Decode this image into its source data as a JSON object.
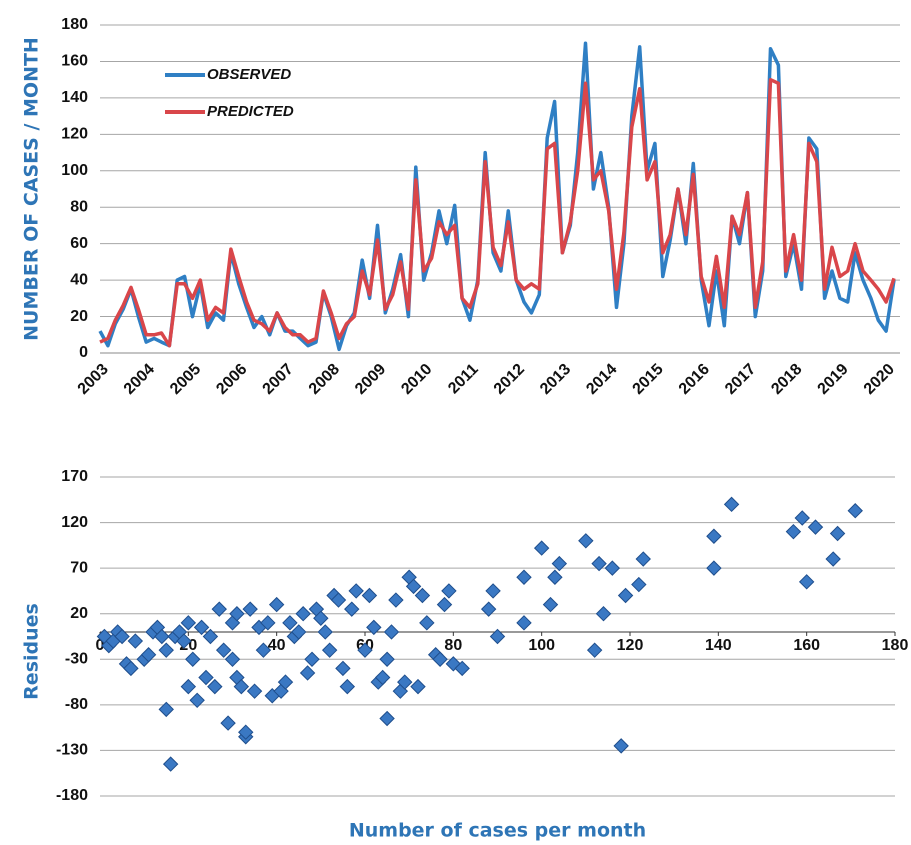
{
  "chart_data": [
    {
      "type": "line",
      "y_label": "NUMBER OF CASES / MONTH",
      "x": [
        2003,
        2003.17,
        2003.33,
        2003.5,
        2003.67,
        2003.83,
        2004,
        2004.17,
        2004.33,
        2004.5,
        2004.67,
        2004.83,
        2005,
        2005.17,
        2005.33,
        2005.5,
        2005.67,
        2005.83,
        2006,
        2006.17,
        2006.33,
        2006.5,
        2006.67,
        2006.83,
        2007,
        2007.17,
        2007.33,
        2007.5,
        2007.67,
        2007.83,
        2008,
        2008.17,
        2008.33,
        2008.5,
        2008.67,
        2008.83,
        2009,
        2009.17,
        2009.33,
        2009.5,
        2009.67,
        2009.83,
        2010,
        2010.17,
        2010.33,
        2010.5,
        2010.67,
        2010.83,
        2011,
        2011.17,
        2011.33,
        2011.5,
        2011.67,
        2011.83,
        2012,
        2012.17,
        2012.33,
        2012.5,
        2012.67,
        2012.83,
        2013,
        2013.17,
        2013.33,
        2013.5,
        2013.67,
        2013.83,
        2014,
        2014.17,
        2014.33,
        2014.5,
        2014.67,
        2014.83,
        2015,
        2015.17,
        2015.33,
        2015.5,
        2015.67,
        2015.83,
        2016,
        2016.17,
        2016.33,
        2016.5,
        2016.67,
        2016.83,
        2017,
        2017.17,
        2017.33,
        2017.5,
        2017.67,
        2017.83,
        2018,
        2018.17,
        2018.33,
        2018.5,
        2018.67,
        2018.83,
        2019,
        2019.17,
        2019.33,
        2019.5,
        2019.67,
        2019.83,
        2020,
        2020.17
      ],
      "series": [
        {
          "name": "OBSERVED",
          "color": "#2f7fc4",
          "values": [
            12,
            4,
            16,
            24,
            35,
            20,
            6,
            8,
            6,
            4,
            40,
            42,
            20,
            38,
            14,
            22,
            18,
            55,
            38,
            25,
            14,
            20,
            10,
            22,
            12,
            12,
            8,
            4,
            6,
            33,
            20,
            2,
            15,
            22,
            51,
            30,
            70,
            22,
            35,
            54,
            20,
            102,
            40,
            55,
            78,
            60,
            81,
            30,
            18,
            40,
            110,
            55,
            45,
            78,
            40,
            28,
            22,
            32,
            118,
            138,
            55,
            70,
            110,
            170,
            90,
            110,
            80,
            25,
            60,
            130,
            168,
            100,
            115,
            42,
            62,
            90,
            60,
            104,
            40,
            15,
            45,
            15,
            75,
            60,
            88,
            20,
            45,
            167,
            158,
            42,
            60,
            35,
            118,
            112,
            30,
            45,
            30,
            28,
            55,
            40,
            30,
            18,
            12,
            40
          ]
        },
        {
          "name": "PREDICTED",
          "color": "#d9464a",
          "values": [
            6,
            8,
            18,
            26,
            36,
            24,
            10,
            10,
            11,
            4,
            38,
            38,
            30,
            40,
            18,
            25,
            22,
            57,
            42,
            28,
            18,
            16,
            12,
            22,
            14,
            10,
            10,
            6,
            8,
            34,
            22,
            8,
            16,
            20,
            45,
            32,
            62,
            24,
            32,
            50,
            24,
            95,
            45,
            52,
            72,
            65,
            70,
            30,
            25,
            38,
            105,
            58,
            48,
            72,
            40,
            35,
            38,
            35,
            112,
            115,
            55,
            72,
            100,
            148,
            95,
            100,
            78,
            35,
            66,
            124,
            145,
            95,
            105,
            55,
            65,
            90,
            65,
            98,
            42,
            28,
            53,
            25,
            75,
            65,
            88,
            25,
            50,
            150,
            148,
            45,
            65,
            40,
            115,
            105,
            35,
            58,
            42,
            45,
            60,
            45,
            40,
            35,
            28,
            41
          ]
        }
      ],
      "xlim": [
        2003,
        2020.3
      ],
      "xticks": [
        2003,
        2004,
        2005,
        2006,
        2007,
        2008,
        2009,
        2010,
        2011,
        2012,
        2013,
        2014,
        2015,
        2016,
        2017,
        2018,
        2019,
        2020
      ],
      "ylim": [
        0,
        180
      ],
      "yticks": [
        0,
        20,
        40,
        60,
        80,
        100,
        120,
        140,
        160,
        180
      ],
      "grid": true,
      "legend": "upper left"
    },
    {
      "type": "scatter",
      "x_label": "Number of cases per month",
      "y_label": "Residues",
      "color": "#3a78c3",
      "x": [
        1,
        2,
        3,
        4,
        5,
        6,
        7,
        8,
        10,
        11,
        12,
        13,
        14,
        15,
        15,
        16,
        17,
        18,
        19,
        20,
        20,
        21,
        22,
        23,
        24,
        25,
        26,
        27,
        28,
        29,
        30,
        30,
        31,
        31,
        32,
        33,
        33,
        34,
        35,
        36,
        37,
        38,
        39,
        40,
        41,
        42,
        43,
        44,
        45,
        46,
        47,
        48,
        49,
        50,
        51,
        52,
        53,
        54,
        55,
        56,
        57,
        58,
        60,
        61,
        62,
        63,
        64,
        65,
        65,
        66,
        67,
        68,
        69,
        70,
        71,
        72,
        73,
        74,
        76,
        77,
        78,
        79,
        80,
        82,
        88,
        89,
        90,
        96,
        96,
        100,
        102,
        103,
        104,
        110,
        112,
        113,
        114,
        116,
        118,
        119,
        122,
        123,
        139,
        139,
        143,
        157,
        159,
        160,
        162,
        166,
        167,
        171
      ],
      "values": [
        -5,
        -15,
        -10,
        0,
        -5,
        -35,
        -40,
        -10,
        -30,
        -25,
        0,
        5,
        -5,
        -20,
        -85,
        -145,
        -5,
        0,
        -10,
        10,
        -60,
        -30,
        -75,
        5,
        -50,
        -5,
        -60,
        25,
        -20,
        -100,
        10,
        -30,
        20,
        -50,
        -60,
        -115,
        -110,
        25,
        -65,
        5,
        -20,
        10,
        -70,
        30,
        -65,
        -55,
        10,
        -5,
        0,
        20,
        -45,
        -30,
        25,
        15,
        0,
        -20,
        40,
        35,
        -40,
        -60,
        25,
        45,
        -20,
        40,
        5,
        -55,
        -50,
        -95,
        -30,
        0,
        35,
        -65,
        -55,
        60,
        50,
        -60,
        40,
        10,
        -25,
        -30,
        30,
        45,
        -35,
        -40,
        25,
        45,
        -5,
        60,
        10,
        92,
        30,
        60,
        75,
        100,
        -20,
        75,
        20,
        70,
        -125,
        40,
        52,
        80,
        105,
        70,
        140,
        110,
        125,
        55,
        115,
        80,
        108,
        133
      ],
      "xlim": [
        0,
        180
      ],
      "xticks": [
        0,
        20,
        40,
        60,
        80,
        100,
        120,
        140,
        160,
        180
      ],
      "ylim": [
        -180,
        170
      ],
      "yticks": [
        -180,
        -130,
        -80,
        -30,
        20,
        70,
        120,
        170
      ],
      "grid": true
    }
  ]
}
